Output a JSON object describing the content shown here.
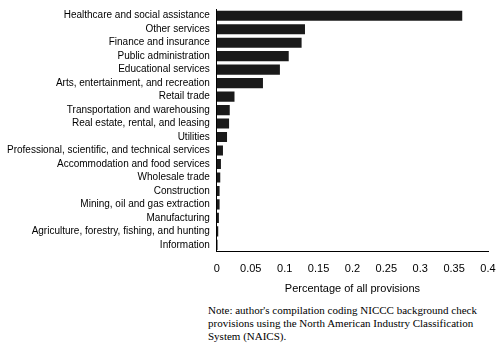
{
  "chart_data": {
    "type": "bar",
    "orientation": "horizontal",
    "categories": [
      "Healthcare and social assistance",
      "Other services",
      "Finance and insurance",
      "Public administration",
      "Educational services",
      "Arts, entertainment, and recreation",
      "Retail trade",
      "Transportation and warehousing",
      "Real estate, rental, and leasing",
      "Utilities",
      "Professional, scientific, and technical services",
      "Accommodation and food services",
      "Wholesale trade",
      "Construction",
      "Mining, oil and gas extraction",
      "Manufacturing",
      "Agriculture, forestry, fishing, and hunting",
      "Information"
    ],
    "values": [
      0.362,
      0.13,
      0.125,
      0.106,
      0.093,
      0.068,
      0.026,
      0.019,
      0.018,
      0.015,
      0.009,
      0.006,
      0.005,
      0.004,
      0.004,
      0.003,
      0.002,
      0.001
    ],
    "color": "#1a1a1a",
    "xlabel": "Percentage of all provisions",
    "xlim": [
      0,
      0.4
    ],
    "xticks": [
      0,
      0.05,
      0.1,
      0.15,
      0.2,
      0.25,
      0.3,
      0.35,
      0.4
    ],
    "grid": false,
    "note": "Note: author's compilation coding NICCC background check provisions using the North American Industry Classification System (NAICS)."
  }
}
